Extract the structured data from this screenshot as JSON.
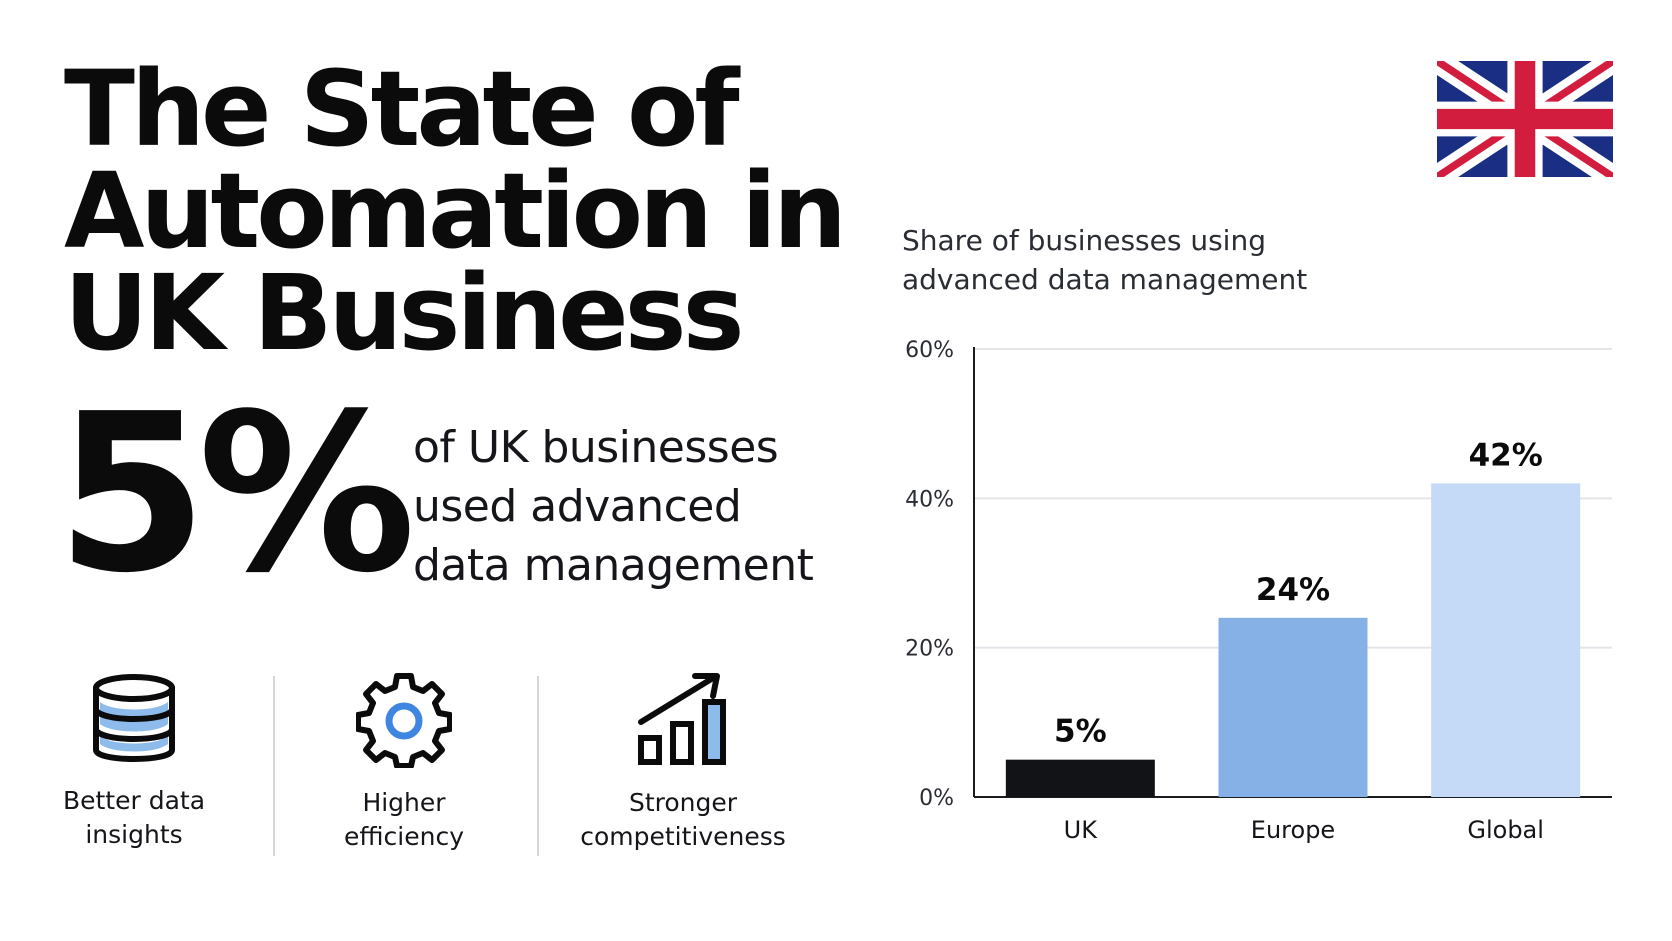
{
  "header": {
    "title_lines": [
      "The State of",
      "Automation in",
      "UK Business"
    ]
  },
  "headline_stat": {
    "value": "5%",
    "description_lines": [
      "of UK businesses",
      "used advanced",
      "data management"
    ]
  },
  "benefits": [
    {
      "icon": "database-icon",
      "label_lines": [
        "Better data",
        "insights"
      ]
    },
    {
      "icon": "gear-icon",
      "label_lines": [
        "Higher",
        "efficiency"
      ]
    },
    {
      "icon": "growth-chart-icon",
      "label_lines": [
        "Stronger",
        "competitiveness"
      ]
    }
  ],
  "flag": {
    "icon": "uk-flag-icon"
  },
  "colors": {
    "text": "#0b0b0c",
    "uk_bar": "#121316",
    "europe_bar": "#86b1e6",
    "global_bar": "#c4daf6",
    "accent_blue": "#3f86e0",
    "flag_blue": "#1a2f84",
    "flag_red": "#d31d3f",
    "gridline": "#e3e5e8",
    "divider": "#d4d6da"
  },
  "chart_data": {
    "type": "bar",
    "title_lines": [
      "Share of businesses using",
      "advanced data management"
    ],
    "categories": [
      "UK",
      "Europe",
      "Global"
    ],
    "values": [
      5,
      24,
      42
    ],
    "data_labels": [
      "5%",
      "24%",
      "42%"
    ],
    "yticks": [
      "0%",
      "20%",
      "40%",
      "60%"
    ],
    "ylim": [
      0,
      60
    ],
    "grid": true,
    "legend": "none"
  }
}
